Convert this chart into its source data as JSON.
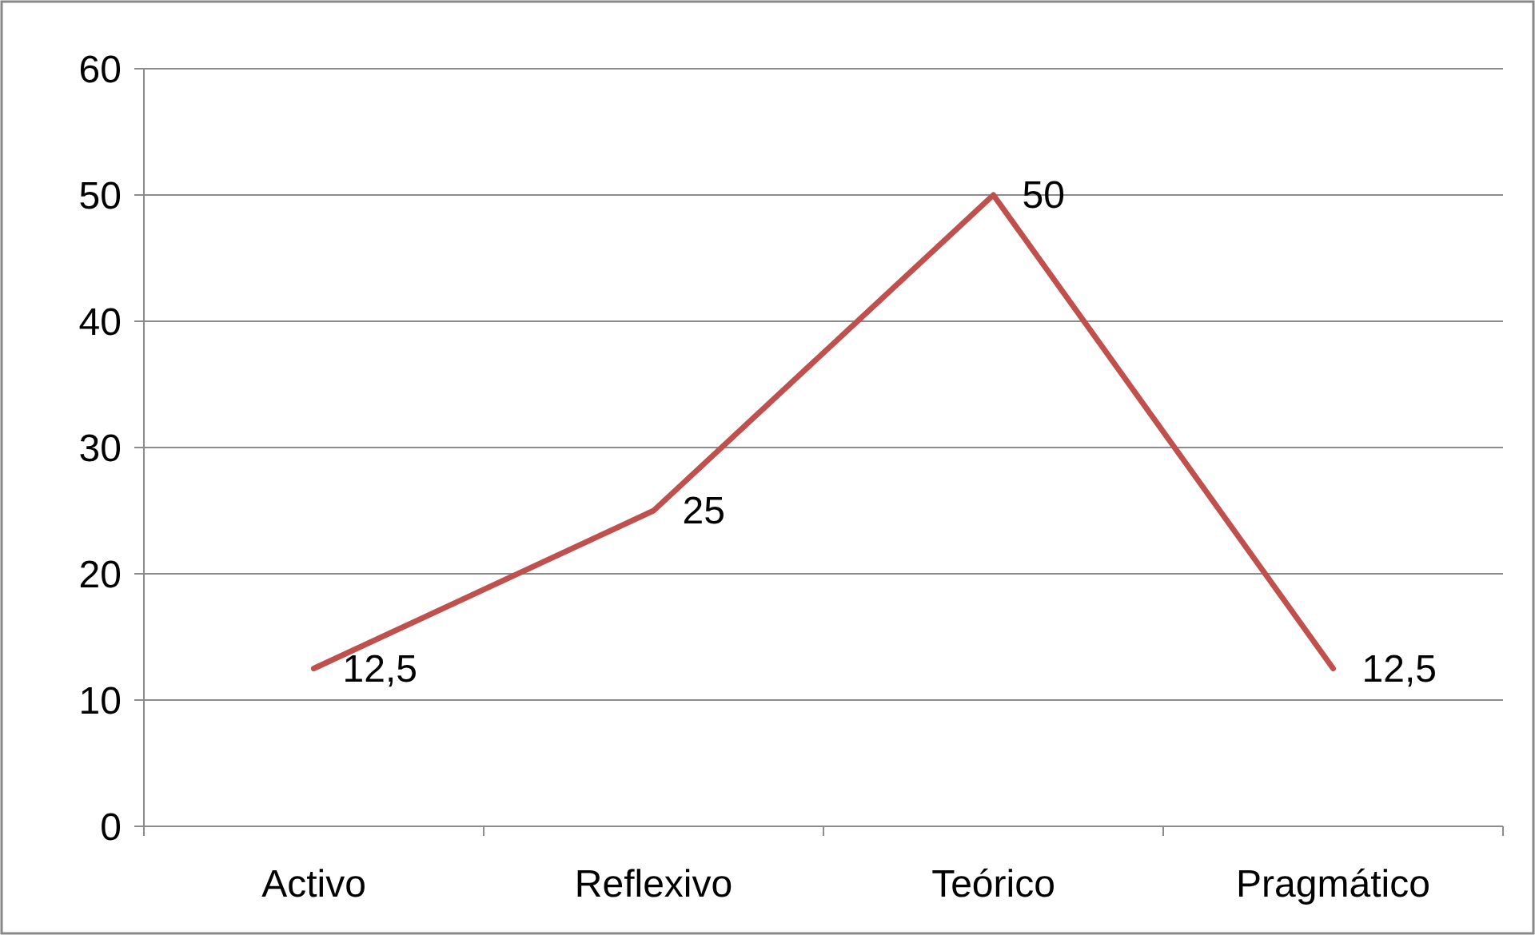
{
  "chart_data": {
    "type": "line",
    "categories": [
      "Activo",
      "Reflexivo",
      "Teórico",
      "Pragmático"
    ],
    "series": [
      {
        "color": "#c0504d",
        "values": [
          12.5,
          25,
          50,
          12.5
        ],
        "value_labels": [
          "12,5",
          "25",
          "50",
          "12,5"
        ]
      }
    ],
    "ylim": [
      0,
      60
    ],
    "yticks": [
      0,
      10,
      20,
      30,
      40,
      50,
      60
    ],
    "grid": "y",
    "marker": "none",
    "line_style": "solid"
  }
}
